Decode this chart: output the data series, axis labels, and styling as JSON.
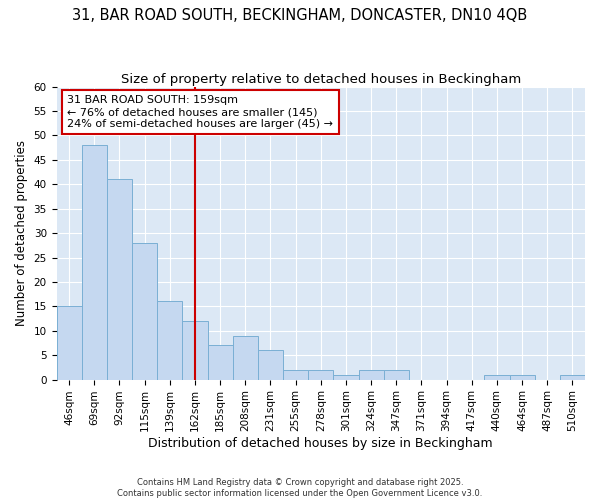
{
  "title1": "31, BAR ROAD SOUTH, BECKINGHAM, DONCASTER, DN10 4QB",
  "title2": "Size of property relative to detached houses in Beckingham",
  "xlabel": "Distribution of detached houses by size in Beckingham",
  "ylabel": "Number of detached properties",
  "categories": [
    "46sqm",
    "69sqm",
    "92sqm",
    "115sqm",
    "139sqm",
    "162sqm",
    "185sqm",
    "208sqm",
    "231sqm",
    "255sqm",
    "278sqm",
    "301sqm",
    "324sqm",
    "347sqm",
    "371sqm",
    "394sqm",
    "417sqm",
    "440sqm",
    "464sqm",
    "487sqm",
    "510sqm"
  ],
  "values": [
    15,
    48,
    41,
    28,
    16,
    12,
    7,
    9,
    6,
    2,
    2,
    1,
    2,
    2,
    0,
    0,
    0,
    1,
    1,
    0,
    1
  ],
  "bar_color": "#c5d8f0",
  "bar_edgecolor": "#7aafd4",
  "bg_color": "#dce8f5",
  "grid_color": "#ffffff",
  "fig_bg_color": "#ffffff",
  "vline_x": 5,
  "vline_color": "#cc0000",
  "annotation_line1": "31 BAR ROAD SOUTH: 159sqm",
  "annotation_line2": "← 76% of detached houses are smaller (145)",
  "annotation_line3": "24% of semi-detached houses are larger (45) →",
  "annotation_box_edgecolor": "#cc0000",
  "annotation_box_facecolor": "#ffffff",
  "ylim": [
    0,
    60
  ],
  "yticks": [
    0,
    5,
    10,
    15,
    20,
    25,
    30,
    35,
    40,
    45,
    50,
    55,
    60
  ],
  "footer": "Contains HM Land Registry data © Crown copyright and database right 2025.\nContains public sector information licensed under the Open Government Licence v3.0.",
  "title1_fontsize": 10.5,
  "title2_fontsize": 9.5,
  "xlabel_fontsize": 9,
  "ylabel_fontsize": 8.5,
  "tick_fontsize": 7.5,
  "annot_fontsize": 8,
  "footer_fontsize": 6
}
